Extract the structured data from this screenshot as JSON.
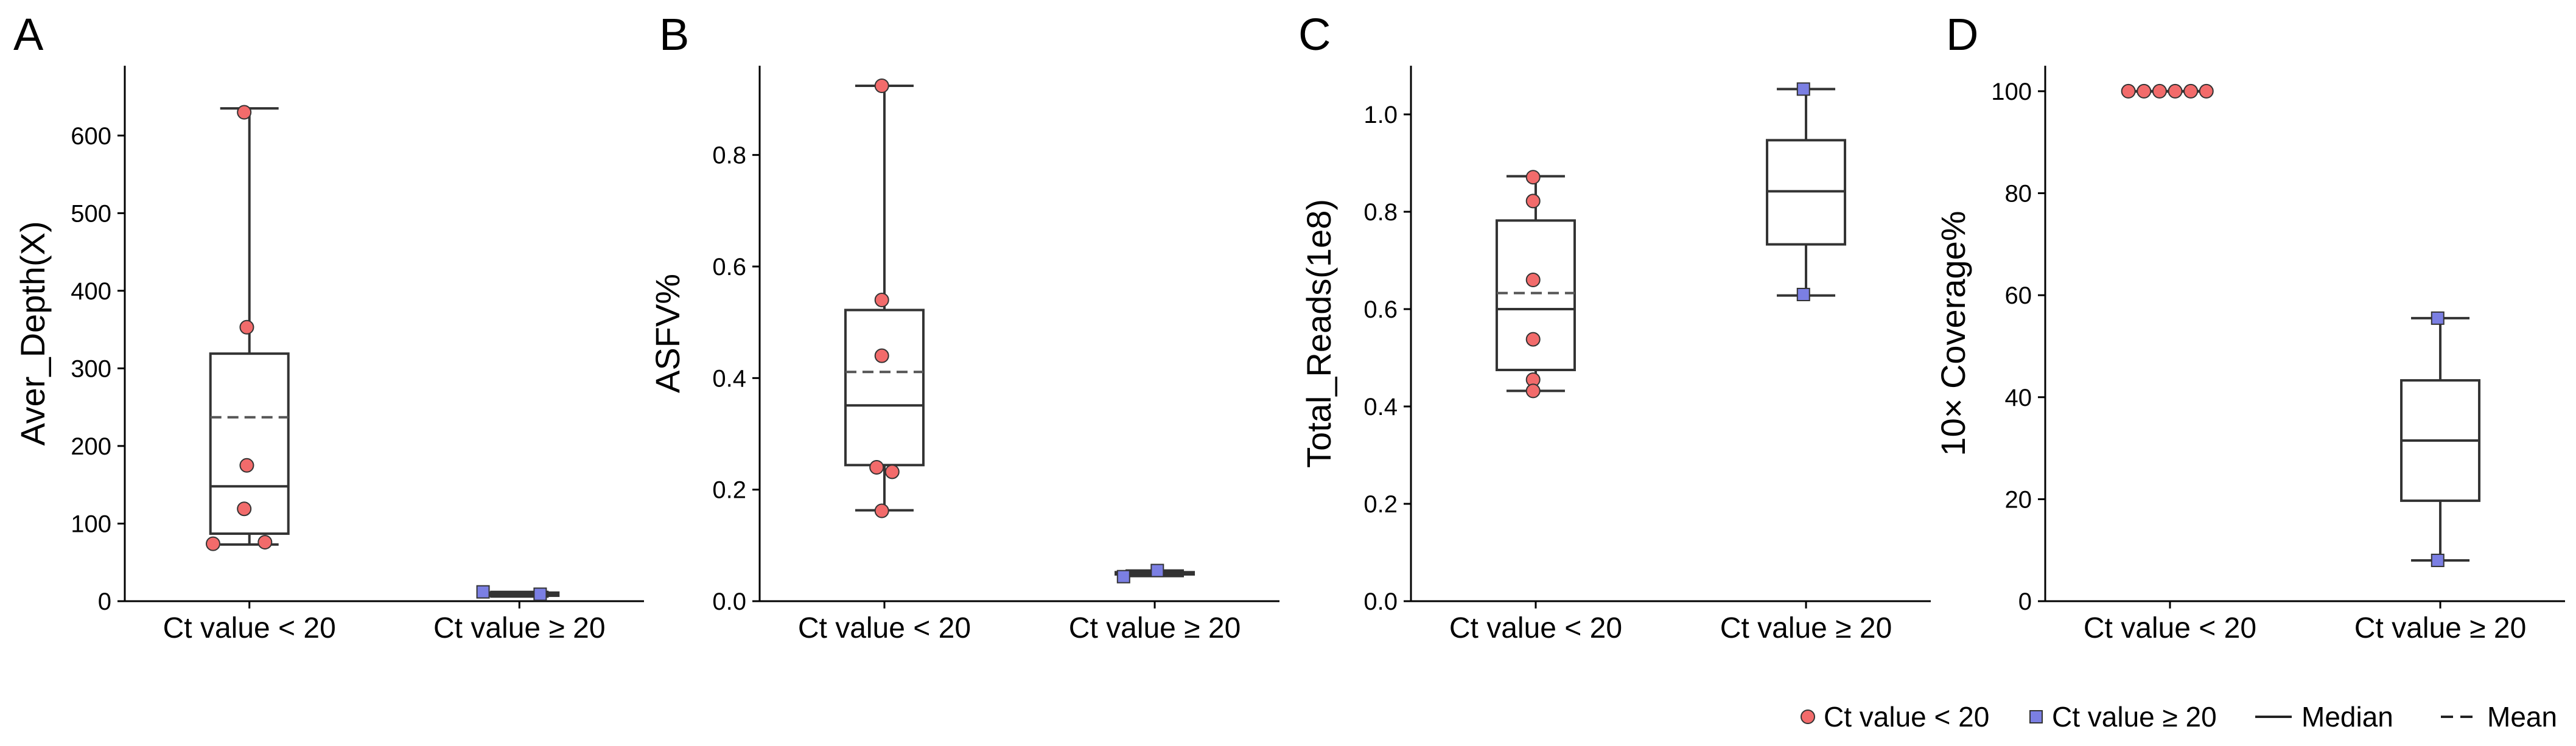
{
  "colors": {
    "group1": "#f26b6b",
    "group2": "#7b7fe3",
    "marker_edge": "#333333",
    "box": "#333333",
    "axis": "#000000"
  },
  "legend": {
    "items": [
      {
        "label": "Ct value < 20",
        "kind": "circle"
      },
      {
        "label": "Ct value ≥ 20",
        "kind": "square"
      },
      {
        "label": "Median",
        "kind": "solid-line"
      },
      {
        "label": "Mean",
        "kind": "dashed-line"
      }
    ]
  },
  "chart_data": [
    {
      "panel": "A",
      "type": "box",
      "ylabel": "Aver_Depth(X)",
      "ylim": [
        0,
        690
      ],
      "yticks": [
        0,
        100,
        200,
        300,
        400,
        500,
        600
      ],
      "ytick_labels": [
        "0",
        "100",
        "200",
        "300",
        "400",
        "500",
        "600"
      ],
      "categories": [
        "Ct value < 20",
        "Ct value ≥ 20"
      ],
      "boxes": [
        {
          "whisker_low": 73,
          "q1": 87,
          "median": 148,
          "mean": 237,
          "q3": 319,
          "whisker_high": 635
        },
        {
          "whisker_low": 6,
          "q1": 7,
          "median": 9,
          "mean": 9,
          "q3": 11,
          "whisker_high": 12
        }
      ],
      "points": [
        {
          "group": 0,
          "x_offset": -0.02,
          "y": 630
        },
        {
          "group": 0,
          "x_offset": -0.01,
          "y": 353
        },
        {
          "group": 0,
          "x_offset": -0.01,
          "y": 175
        },
        {
          "group": 0,
          "x_offset": -0.02,
          "y": 119
        },
        {
          "group": 0,
          "x_offset": -0.14,
          "y": 74
        },
        {
          "group": 0,
          "x_offset": 0.06,
          "y": 76
        },
        {
          "group": 1,
          "x_offset": -0.14,
          "y": 12
        },
        {
          "group": 1,
          "x_offset": 0.08,
          "y": 9
        }
      ]
    },
    {
      "panel": "B",
      "type": "box",
      "ylabel": "ASFV%",
      "ylim": [
        0,
        0.96
      ],
      "yticks": [
        0,
        0.2,
        0.4,
        0.6,
        0.8
      ],
      "ytick_labels": [
        "0.0",
        "0.2",
        "0.4",
        "0.6",
        "0.8"
      ],
      "categories": [
        "Ct value < 20",
        "Ct value ≥ 20"
      ],
      "boxes": [
        {
          "whisker_low": 0.163,
          "q1": 0.244,
          "median": 0.351,
          "mean": 0.411,
          "q3": 0.522,
          "whisker_high": 0.924
        },
        {
          "whisker_low": 0.045,
          "q1": 0.048,
          "median": 0.05,
          "mean": 0.05,
          "q3": 0.052,
          "whisker_high": 0.055
        }
      ],
      "points": [
        {
          "group": 0,
          "x_offset": -0.01,
          "y": 0.924
        },
        {
          "group": 0,
          "x_offset": -0.01,
          "y": 0.54
        },
        {
          "group": 0,
          "x_offset": -0.01,
          "y": 0.44
        },
        {
          "group": 0,
          "x_offset": -0.03,
          "y": 0.24
        },
        {
          "group": 0,
          "x_offset": 0.03,
          "y": 0.232
        },
        {
          "group": 0,
          "x_offset": -0.01,
          "y": 0.162
        },
        {
          "group": 1,
          "x_offset": -0.12,
          "y": 0.044
        },
        {
          "group": 1,
          "x_offset": 0.01,
          "y": 0.055
        }
      ]
    },
    {
      "panel": "C",
      "type": "box",
      "ylabel": "Total_Reads(1e8)",
      "ylim": [
        0,
        1.1
      ],
      "yticks": [
        0,
        0.2,
        0.4,
        0.6,
        0.8,
        1.0
      ],
      "ytick_labels": [
        "0.0",
        "0.2",
        "0.4",
        "0.6",
        "0.8",
        "1.0"
      ],
      "categories": [
        "Ct value < 20",
        "Ct value ≥ 20"
      ],
      "boxes": [
        {
          "whisker_low": 0.432,
          "q1": 0.475,
          "median": 0.6,
          "mean": 0.633,
          "q3": 0.782,
          "whisker_high": 0.873
        },
        {
          "whisker_low": 0.628,
          "q1": 0.733,
          "median": 0.842,
          "mean": 0.842,
          "q3": 0.947,
          "whisker_high": 1.052
        }
      ],
      "points": [
        {
          "group": 0,
          "x_offset": -0.01,
          "y": 0.871
        },
        {
          "group": 0,
          "x_offset": -0.01,
          "y": 0.822
        },
        {
          "group": 0,
          "x_offset": -0.01,
          "y": 0.66
        },
        {
          "group": 0,
          "x_offset": -0.01,
          "y": 0.538
        },
        {
          "group": 0,
          "x_offset": -0.01,
          "y": 0.455
        },
        {
          "group": 0,
          "x_offset": -0.01,
          "y": 0.432
        },
        {
          "group": 1,
          "x_offset": -0.01,
          "y": 1.052
        },
        {
          "group": 1,
          "x_offset": -0.01,
          "y": 0.63
        }
      ]
    },
    {
      "panel": "D",
      "type": "box",
      "ylabel": "10× Coverage%",
      "ylim": [
        0,
        105
      ],
      "yticks": [
        0,
        20,
        40,
        60,
        80,
        100
      ],
      "ytick_labels": [
        "0",
        "20",
        "40",
        "60",
        "80",
        "100"
      ],
      "categories": [
        "Ct value < 20",
        "Ct value ≥ 20"
      ],
      "boxes": [
        {
          "whisker_low": 100,
          "q1": 100,
          "median": 100,
          "mean": 100,
          "q3": 100,
          "whisker_high": 100
        },
        {
          "whisker_low": 8,
          "q1": 19.7,
          "median": 31.5,
          "mean": 31.5,
          "q3": 43.3,
          "whisker_high": 55.5
        }
      ],
      "points": [
        {
          "group": 0,
          "x_offset": -0.16,
          "y": 100
        },
        {
          "group": 0,
          "x_offset": -0.1,
          "y": 100
        },
        {
          "group": 0,
          "x_offset": -0.04,
          "y": 100
        },
        {
          "group": 0,
          "x_offset": 0.02,
          "y": 100
        },
        {
          "group": 0,
          "x_offset": 0.08,
          "y": 100
        },
        {
          "group": 0,
          "x_offset": 0.14,
          "y": 100
        },
        {
          "group": 1,
          "x_offset": -0.01,
          "y": 55.5
        },
        {
          "group": 1,
          "x_offset": -0.01,
          "y": 8
        }
      ]
    }
  ]
}
